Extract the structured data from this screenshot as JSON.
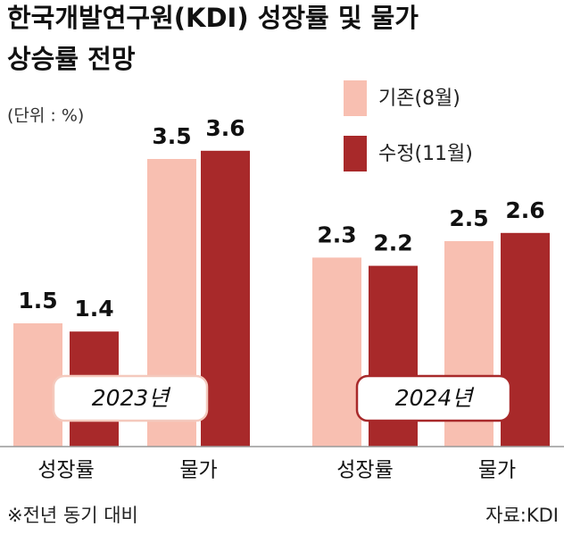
{
  "chart_data": {
    "type": "bar",
    "title": [
      "한국개발연구원(KDI) 성장률 및 물가",
      "상승률 전망"
    ],
    "unit": "(단위 : %)",
    "groups": [
      "2023년",
      "2024년"
    ],
    "categories": [
      "성장률",
      "물가",
      "성장률",
      "물가"
    ],
    "series": [
      {
        "name": "기존(8월)",
        "color": "#f8bfb1",
        "values": [
          1.5,
          3.5,
          2.3,
          2.5
        ]
      },
      {
        "name": "수정(11월)",
        "color": "#a8292a",
        "values": [
          1.4,
          3.6,
          2.2,
          2.6
        ]
      }
    ],
    "note": "※전년 동기 대비",
    "source": "자료:KDI"
  }
}
